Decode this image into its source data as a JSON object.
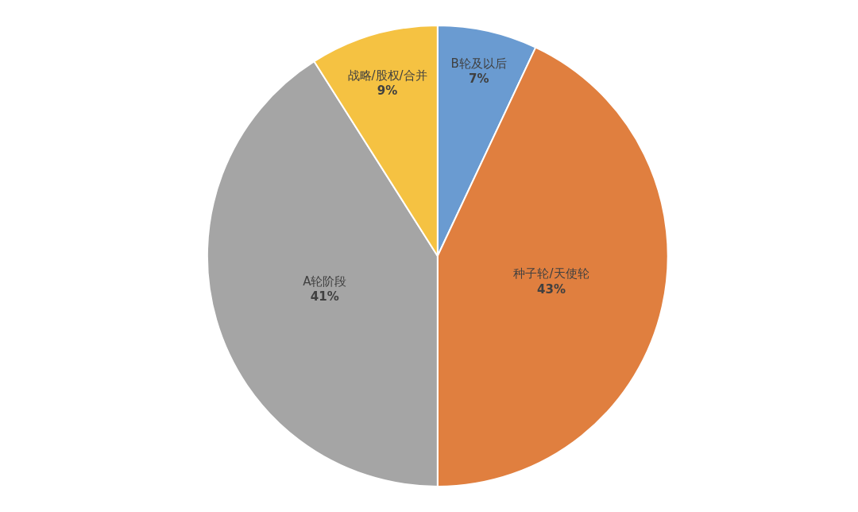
{
  "chart_data": {
    "type": "pie",
    "categories": [
      "B轮及以后",
      "种子轮/天使轮",
      "A轮阶段",
      "战略/股权/合并"
    ],
    "values": [
      7,
      43,
      41,
      9
    ],
    "value_labels": [
      "7%",
      "43%",
      "41%",
      "9%"
    ],
    "colors": [
      "#6a9bd1",
      "#e07f3f",
      "#a5a5a5",
      "#f5c242"
    ],
    "legend": false
  }
}
